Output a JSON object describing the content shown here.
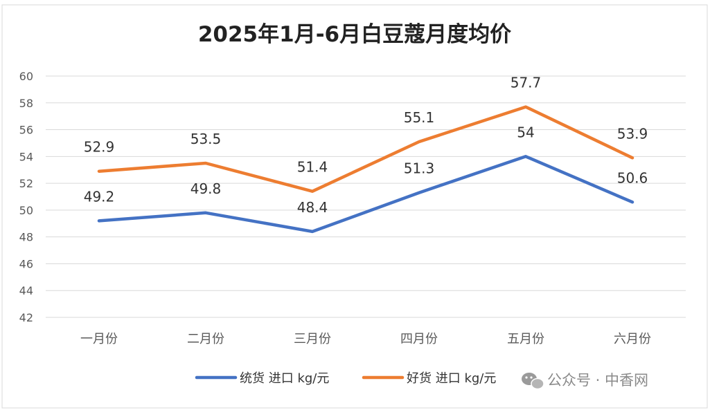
{
  "chart_data": {
    "type": "line",
    "title": "2025年1月-6月白豆蔻月度均价",
    "categories": [
      "一月份",
      "二月份",
      "三月份",
      "四月份",
      "五月份",
      "六月份"
    ],
    "series": [
      {
        "name": "统货 进口 kg/元",
        "color": "#4472C4",
        "values": [
          49.2,
          49.8,
          48.4,
          51.3,
          54,
          50.6
        ]
      },
      {
        "name": "好货 进口 kg/元",
        "color": "#ED7D31",
        "values": [
          52.9,
          53.5,
          51.4,
          55.1,
          57.7,
          53.9
        ]
      }
    ],
    "ylim": [
      42,
      60
    ],
    "yticks": [
      "42",
      "44",
      "46",
      "48",
      "50",
      "52",
      "54",
      "56",
      "58",
      "60"
    ],
    "grid": true,
    "legend_position": "bottom"
  },
  "watermark": {
    "text": "公众号 · 中香网",
    "icon": "wechat-icon"
  }
}
